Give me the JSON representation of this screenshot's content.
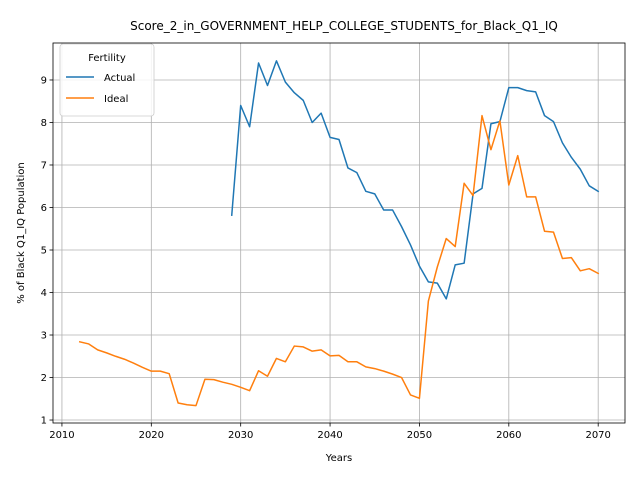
{
  "chart_data": {
    "type": "line",
    "title": "Score_2_in_GOVERNMENT_HELP_COLLEGE_STUDENTS_for_Black_Q1_IQ",
    "xlabel": "Years",
    "ylabel": "% of Black Q1_IQ Population",
    "xlim": [
      2009,
      2073
    ],
    "ylim": [
      0.93,
      9.87
    ],
    "xticks": [
      2010,
      2020,
      2030,
      2040,
      2050,
      2060,
      2070
    ],
    "yticks": [
      1,
      2,
      3,
      4,
      5,
      6,
      7,
      8,
      9
    ],
    "grid": true,
    "legend": {
      "title": "Fertility",
      "position": "top-left"
    },
    "series": [
      {
        "name": "Actual",
        "color": "#1f77b4",
        "x": [
          2029,
          2030,
          2031,
          2032,
          2033,
          2034,
          2035,
          2036,
          2037,
          2038,
          2039,
          2040,
          2041,
          2042,
          2043,
          2044,
          2045,
          2046,
          2047,
          2048,
          2049,
          2050,
          2051,
          2052,
          2053,
          2054,
          2055,
          2056,
          2057,
          2058,
          2059,
          2060,
          2061,
          2062,
          2063,
          2064,
          2065,
          2066,
          2067,
          2068,
          2069,
          2070
        ],
        "y": [
          5.82,
          8.4,
          7.9,
          9.4,
          8.87,
          9.45,
          8.95,
          8.7,
          8.52,
          8.0,
          8.22,
          7.65,
          7.6,
          6.93,
          6.82,
          6.38,
          6.32,
          5.94,
          5.94,
          5.55,
          5.12,
          4.62,
          4.25,
          4.22,
          3.85,
          4.65,
          4.69,
          6.32,
          6.45,
          7.97,
          8.02,
          8.82,
          8.82,
          8.75,
          8.72,
          8.16,
          8.02,
          7.52,
          7.18,
          6.9,
          6.51,
          6.38
        ]
      },
      {
        "name": "Ideal",
        "color": "#ff7f0e",
        "x": [
          2012,
          2013,
          2014,
          2015,
          2016,
          2017,
          2018,
          2019,
          2020,
          2021,
          2022,
          2023,
          2024,
          2025,
          2026,
          2027,
          2028,
          2029,
          2030,
          2031,
          2032,
          2033,
          2034,
          2035,
          2036,
          2037,
          2038,
          2039,
          2040,
          2041,
          2042,
          2043,
          2044,
          2045,
          2046,
          2047,
          2048,
          2049,
          2050,
          2051,
          2052,
          2053,
          2054,
          2055,
          2056,
          2057,
          2058,
          2059,
          2060,
          2061,
          2062,
          2063,
          2064,
          2065,
          2066,
          2067,
          2068,
          2069,
          2070
        ],
        "y": [
          2.84,
          2.79,
          2.65,
          2.58,
          2.5,
          2.43,
          2.34,
          2.24,
          2.15,
          2.15,
          2.09,
          1.4,
          1.36,
          1.34,
          1.96,
          1.95,
          1.89,
          1.84,
          1.77,
          1.69,
          2.16,
          2.03,
          2.45,
          2.37,
          2.74,
          2.72,
          2.62,
          2.65,
          2.51,
          2.52,
          2.37,
          2.37,
          2.25,
          2.21,
          2.15,
          2.08,
          2.0,
          1.59,
          1.51,
          3.8,
          4.6,
          5.27,
          5.08,
          6.57,
          6.28,
          8.16,
          7.36,
          8.04,
          6.53,
          7.22,
          6.25,
          6.25,
          5.44,
          5.42,
          4.8,
          4.82,
          4.51,
          4.56,
          4.45
        ]
      }
    ]
  }
}
